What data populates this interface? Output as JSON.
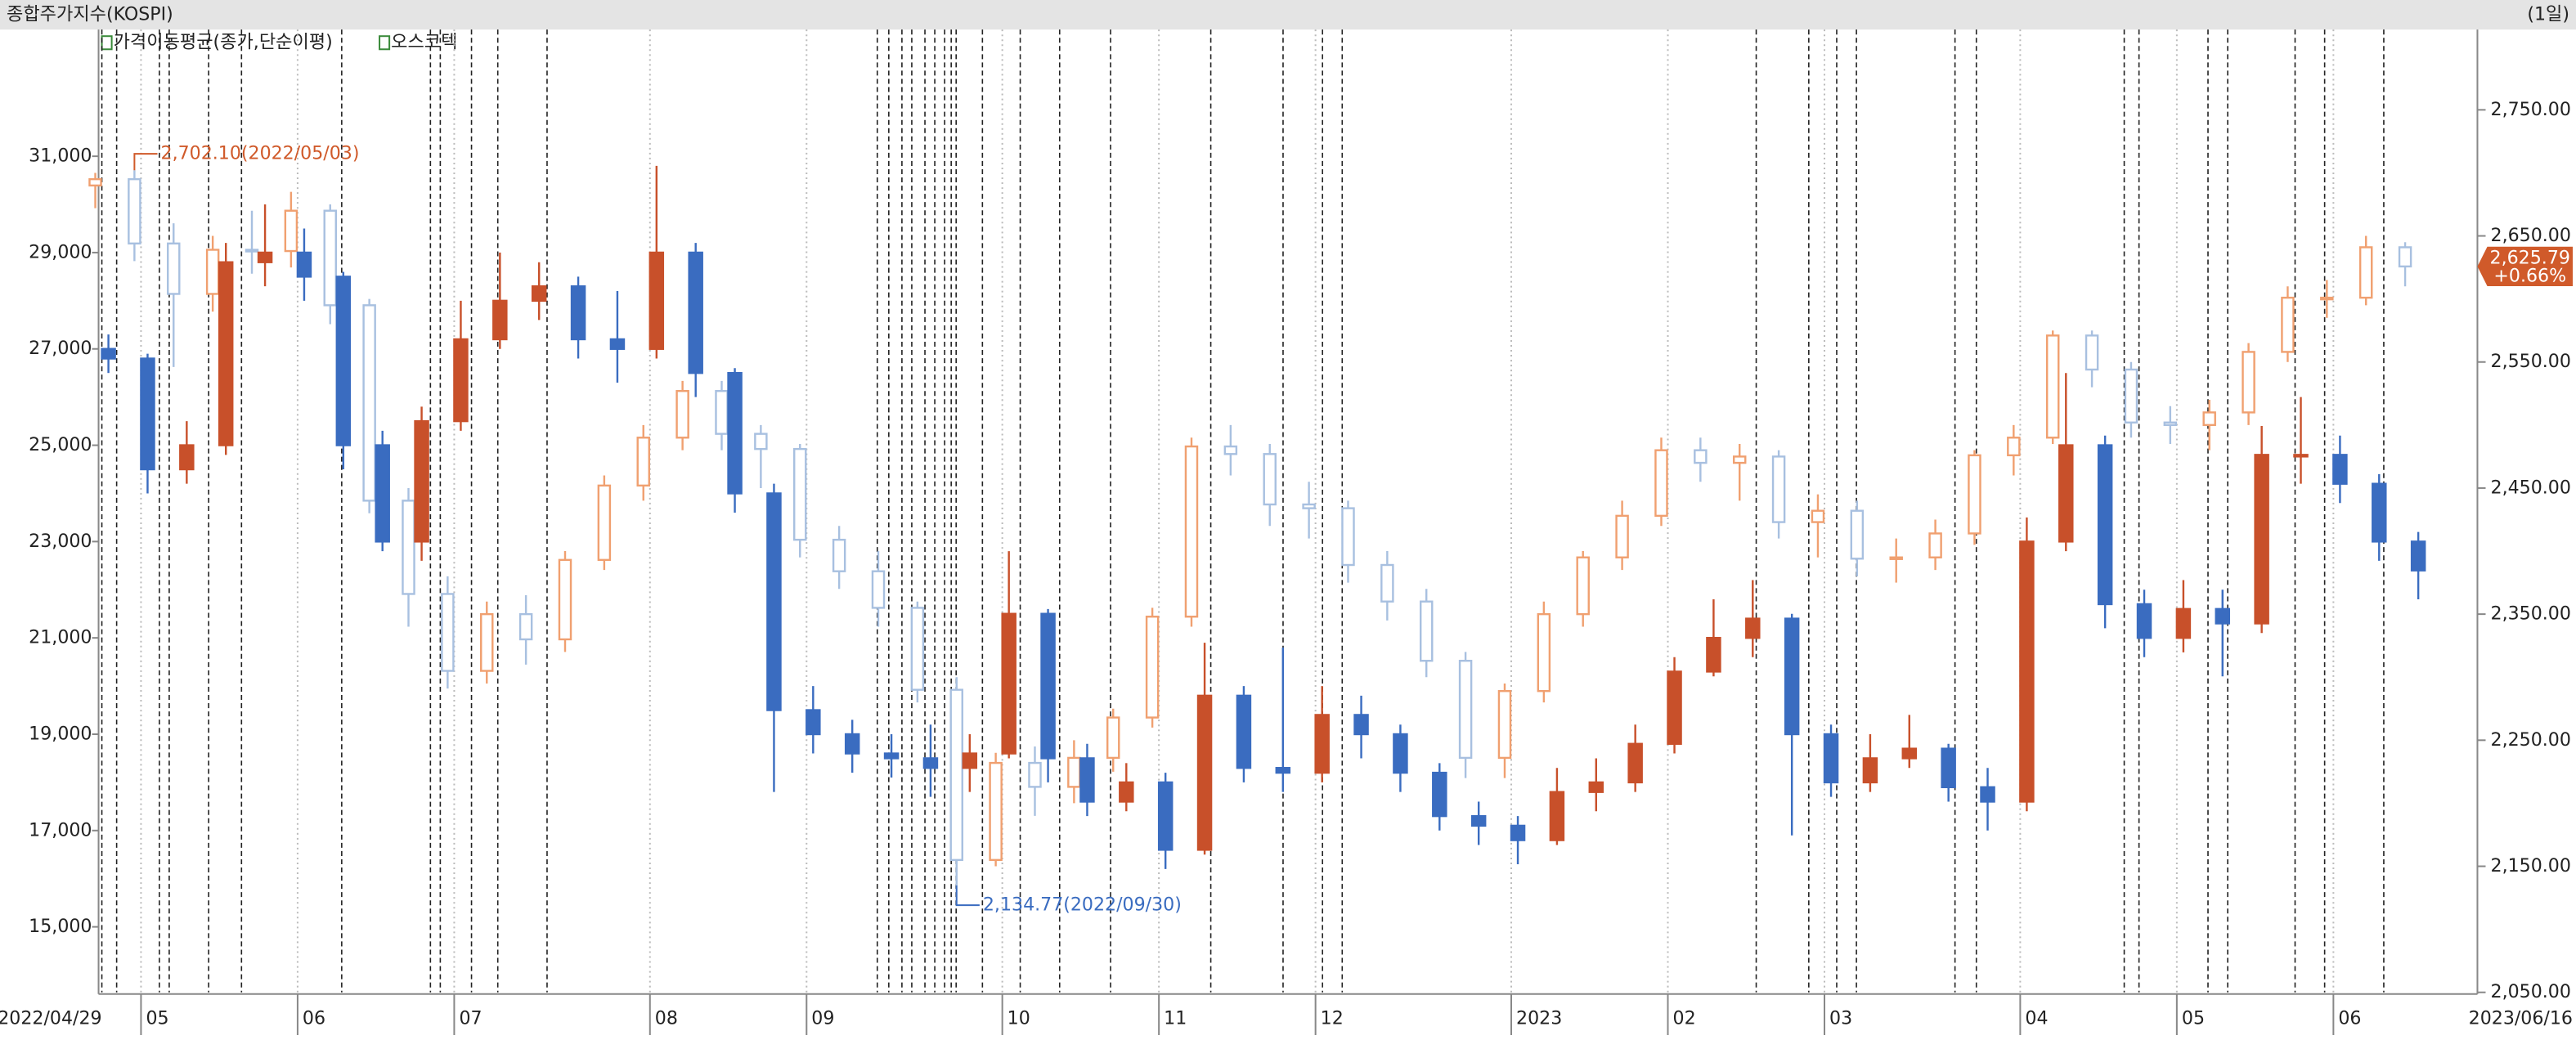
{
  "chart_data": {
    "type": "candlestick",
    "title": "종합주가지수(KOSPI)",
    "period": "(1일)",
    "indicator": "가격이동평균(종가,단순이평)",
    "categories": [
      "2022/04/29",
      "05",
      null,
      null,
      null,
      "06",
      null,
      null,
      null,
      "07",
      null,
      null,
      null,
      null,
      "08",
      null,
      null,
      null,
      "09",
      null,
      null,
      null,
      null,
      "10",
      null,
      null,
      null,
      "11",
      null,
      null,
      null,
      "12",
      null,
      null,
      null,
      null,
      "2023",
      null,
      null,
      null,
      "02",
      null,
      null,
      null,
      "03",
      null,
      null,
      null,
      null,
      "04",
      null,
      null,
      null,
      "05",
      null,
      null,
      null,
      "06",
      null,
      "2023/06/16"
    ],
    "series": [
      {
        "axis": "y2",
        "color_up": "#f0a070",
        "color_down": "#a8c0e0",
        "open": [
          2690,
          2695,
          2644,
          2604,
          2639,
          2638,
          2670,
          2595,
          2440,
          2366,
          2305,
          2350,
          2330,
          2393,
          2452,
          2490,
          2527,
          2493,
          2481,
          2409,
          2384,
          2355,
          2290,
          2155,
          2232,
          2213,
          2236,
          2268,
          2348,
          2483,
          2477,
          2437,
          2434,
          2389,
          2360,
          2313,
          2236,
          2289,
          2350,
          2395,
          2428,
          2480,
          2470,
          2475,
          2423,
          2432,
          2394,
          2395,
          2414,
          2476,
          2490,
          2571,
          2544,
          2502,
          2500,
          2510,
          2558,
          2601,
          2601,
          2641
        ],
        "high": [
          2700,
          2702.1,
          2660,
          2650,
          2670,
          2685,
          2675,
          2600,
          2450,
          2380,
          2360,
          2365,
          2400,
          2460,
          2500,
          2535,
          2535,
          2500,
          2485,
          2420,
          2400,
          2360,
          2300,
          2240,
          2245,
          2250,
          2275,
          2355,
          2490,
          2500,
          2485,
          2455,
          2440,
          2400,
          2370,
          2320,
          2295,
          2360,
          2400,
          2440,
          2490,
          2490,
          2485,
          2480,
          2445,
          2440,
          2410,
          2425,
          2480,
          2500,
          2575,
          2575,
          2550,
          2515,
          2520,
          2565,
          2610,
          2615,
          2650,
          2645
        ],
        "low": [
          2672,
          2630,
          2546,
          2590,
          2620,
          2625,
          2580,
          2430,
          2340,
          2291,
          2295,
          2310,
          2320,
          2385,
          2440,
          2480,
          2480,
          2450,
          2395,
          2370,
          2340,
          2280,
          2134.77,
          2150,
          2190,
          2200,
          2225,
          2260,
          2340,
          2460,
          2420,
          2410,
          2375,
          2345,
          2300,
          2220,
          2220,
          2280,
          2340,
          2385,
          2420,
          2455,
          2440,
          2410,
          2395,
          2380,
          2375,
          2385,
          2405,
          2460,
          2485,
          2530,
          2490,
          2485,
          2480,
          2500,
          2550,
          2585,
          2595,
          2610
        ],
        "close": [
          2695,
          2644,
          2604,
          2639,
          2638,
          2670,
          2595,
          2440,
          2366,
          2305,
          2350,
          2330,
          2393,
          2452,
          2490,
          2527,
          2493,
          2481,
          2409,
          2384,
          2355,
          2290,
          2155,
          2232,
          2213,
          2236,
          2268,
          2348,
          2483,
          2477,
          2437,
          2434,
          2389,
          2360,
          2313,
          2236,
          2289,
          2350,
          2395,
          2428,
          2480,
          2470,
          2475,
          2423,
          2432,
          2394,
          2395,
          2414,
          2476,
          2490,
          2571,
          2544,
          2502,
          2500,
          2510,
          2558,
          2601,
          2601,
          2641,
          2625.79
        ]
      },
      {
        "name": "오스코텍",
        "axis": "y",
        "color_up": "#c8502a",
        "color_down": "#3a6cc0",
        "open": [
          27000,
          26800,
          24500,
          25000,
          28800,
          29000,
          28500,
          25000,
          23000,
          25500,
          27200,
          28000,
          28300,
          27200,
          27000,
          29000,
          26500,
          24000,
          19500,
          19000,
          18600,
          18500,
          18300,
          18600,
          21500,
          18500,
          17600,
          18000,
          16600,
          19800,
          18300,
          18200,
          19400,
          19000,
          18200,
          17300,
          17100,
          16800,
          17800,
          18000,
          18800,
          20300,
          21000,
          21400,
          19000,
          18000,
          18500,
          18700,
          17900,
          17600,
          23000,
          25000,
          21700,
          21000,
          21600,
          21300,
          24800,
          24800,
          24200,
          23000
        ],
        "high": [
          27300,
          26900,
          25500,
          29200,
          30000,
          29500,
          28600,
          25300,
          25800,
          28000,
          29000,
          28800,
          28500,
          28200,
          30800,
          29200,
          26600,
          24200,
          20000,
          19300,
          19000,
          19200,
          19000,
          22800,
          21600,
          18800,
          18400,
          18200,
          20900,
          20000,
          20800,
          20000,
          19800,
          19200,
          18400,
          17600,
          17300,
          18300,
          18500,
          19200,
          20600,
          21800,
          22200,
          21500,
          19200,
          19000,
          19400,
          18800,
          18300,
          23500,
          26500,
          25200,
          22000,
          22200,
          22000,
          25400,
          26000,
          25200,
          24400,
          23200
        ],
        "low": [
          26500,
          24000,
          24200,
          24800,
          28300,
          28000,
          24500,
          22800,
          22600,
          25300,
          27000,
          27600,
          26800,
          26300,
          26800,
          26000,
          23600,
          17800,
          18600,
          18200,
          18100,
          17700,
          17800,
          18500,
          18000,
          17300,
          17400,
          16200,
          16500,
          18000,
          17800,
          18000,
          18500,
          17800,
          17000,
          16700,
          16300,
          16700,
          17400,
          17800,
          18600,
          20200,
          20600,
          16900,
          17700,
          17800,
          18300,
          17600,
          17000,
          17400,
          22800,
          21200,
          20600,
          20700,
          20200,
          21100,
          24200,
          23800,
          22600,
          21800
        ],
        "close": [
          26800,
          24500,
          25000,
          28800,
          29000,
          28500,
          25000,
          23000,
          25500,
          27200,
          28000,
          28300,
          27200,
          27000,
          29000,
          26500,
          24000,
          19500,
          19000,
          18600,
          18500,
          18300,
          18600,
          21500,
          18500,
          17600,
          18000,
          16600,
          19800,
          18300,
          18200,
          19400,
          19000,
          18200,
          17300,
          17100,
          16800,
          17800,
          18000,
          18800,
          20300,
          21000,
          21400,
          19000,
          18000,
          18500,
          18700,
          17900,
          17600,
          23000,
          25000,
          21700,
          21000,
          21600,
          21300,
          24800,
          24800,
          24200,
          23000,
          22400
        ]
      }
    ],
    "ylim": [
      13640,
      32880
    ],
    "yticks": [
      {
        "value": 15000,
        "label": "15,000"
      },
      {
        "value": 17000,
        "label": "17,000"
      },
      {
        "value": 19000,
        "label": "19,000"
      },
      {
        "value": 21000,
        "label": "21,000"
      },
      {
        "value": 23000,
        "label": "23,000"
      },
      {
        "value": 25000,
        "label": "25,000"
      },
      {
        "value": 27000,
        "label": "27,000"
      },
      {
        "value": 29000,
        "label": "29,000"
      },
      {
        "value": 31000,
        "label": "31,000"
      }
    ],
    "y2lim": [
      2050,
      2785
    ],
    "y2ticks": [
      {
        "value": 2050,
        "label": "2,050.00"
      },
      {
        "value": 2150,
        "label": "2,150.00"
      },
      {
        "value": 2250,
        "label": "2,250.00"
      },
      {
        "value": 2350,
        "label": "2,350.00"
      },
      {
        "value": 2450,
        "label": "2,450.00"
      },
      {
        "value": 2550,
        "label": "2,550.00"
      },
      {
        "value": 2650,
        "label": "2,650.00"
      },
      {
        "value": 2750,
        "label": "2,750.00"
      }
    ],
    "annotations": [
      {
        "text": "2,702.10(2022/05/03)",
        "color": "#d05a2a",
        "index": 1,
        "at": "high"
      },
      {
        "text": "2,134.77(2022/09/30)",
        "color": "#3a6cc0",
        "index": 22,
        "at": "low"
      }
    ],
    "last_label": {
      "price": "2,625.79",
      "change": "+0.66%",
      "color": "#d05a2a"
    }
  }
}
